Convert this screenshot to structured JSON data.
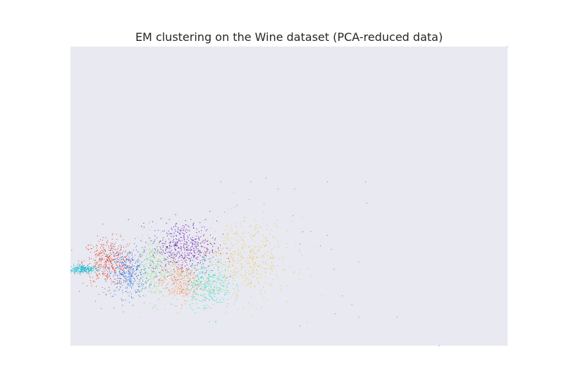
{
  "chart_data": {
    "type": "scatter",
    "title": "EM clustering on the Wine dataset (PCA-reduced data)",
    "xlabel": "",
    "ylabel": "",
    "xlim": [
      -6,
      26
    ],
    "ylim": [
      -4.2,
      12.6
    ],
    "axes_visible": false,
    "grid": false,
    "background": "#e8e9f1",
    "marker_size_px": 1,
    "clusters": [
      {
        "color": "#17becf",
        "center": [
          -5.1,
          0.1
        ],
        "spread": [
          0.55,
          0.12
        ],
        "count": 260
      },
      {
        "color": "#ec3b1c",
        "center": [
          -3.2,
          0.5
        ],
        "spread": [
          0.95,
          0.65
        ],
        "count": 420
      },
      {
        "color": "#2e6fe0",
        "center": [
          -1.8,
          -0.1
        ],
        "spread": [
          0.75,
          0.7
        ],
        "count": 420
      },
      {
        "color": "#8fe38a",
        "center": [
          0.1,
          0.2
        ],
        "spread": [
          0.75,
          0.95
        ],
        "count": 420
      },
      {
        "color": "#6a0dad",
        "center": [
          2.3,
          1.3
        ],
        "spread": [
          1.2,
          0.75
        ],
        "count": 520
      },
      {
        "color": "#ff8a3d",
        "center": [
          2.0,
          -0.6
        ],
        "spread": [
          0.75,
          0.6
        ],
        "count": 330
      },
      {
        "color": "#1fe0c4",
        "center": [
          4.1,
          -0.7
        ],
        "spread": [
          0.85,
          0.7
        ],
        "count": 360
      },
      {
        "color": "#f3c233",
        "center": [
          6.7,
          0.6
        ],
        "spread": [
          1.8,
          1.15
        ],
        "count": 520
      }
    ],
    "outliers": [
      {
        "x": 5.0,
        "y": 5.0,
        "color": "#1fa0e8"
      },
      {
        "x": 7.2,
        "y": 5.0,
        "color": "#1fa0e8"
      },
      {
        "x": 8.3,
        "y": 5.2,
        "color": "#1fa0e8"
      },
      {
        "x": 9.2,
        "y": 4.6,
        "color": "#1fa0e8"
      },
      {
        "x": 10.4,
        "y": 4.6,
        "color": "#1fa0e8"
      },
      {
        "x": 12.8,
        "y": 5.0,
        "color": "#1fa0e8"
      },
      {
        "x": 15.6,
        "y": 5.0,
        "color": "#1fa0e8"
      },
      {
        "x": 15.7,
        "y": 3.8,
        "color": "#1fa0e8"
      },
      {
        "x": 7.1,
        "y": 4.0,
        "color": "#1fa0e8"
      },
      {
        "x": 6.2,
        "y": 3.7,
        "color": "#1fa0e8"
      },
      {
        "x": 5.3,
        "y": 3.3,
        "color": "#1fa0e8"
      },
      {
        "x": 10.3,
        "y": 3.1,
        "color": "#1fa0e8"
      },
      {
        "x": 11.0,
        "y": 2.2,
        "color": "#1fa0e8"
      },
      {
        "x": 11.6,
        "y": 2.2,
        "color": "#1fa0e8"
      },
      {
        "x": 12.8,
        "y": 2.0,
        "color": "#1fa0e8"
      },
      {
        "x": 10.8,
        "y": 1.5,
        "color": "#1fa0e8"
      },
      {
        "x": 12.3,
        "y": 1.4,
        "color": "#1fa0e8"
      },
      {
        "x": 13.1,
        "y": 1.2,
        "color": "#1fa0e8"
      },
      {
        "x": 15.1,
        "y": 0.5,
        "color": "#1fa0e8"
      },
      {
        "x": 13.3,
        "y": 0.1,
        "color": "#1fa0e8"
      },
      {
        "x": 13.9,
        "y": -1.4,
        "color": "#1fa0e8"
      },
      {
        "x": 14.6,
        "y": -1.9,
        "color": "#1fa0e8"
      },
      {
        "x": 13.4,
        "y": -2.4,
        "color": "#1fa0e8"
      },
      {
        "x": 15.1,
        "y": -2.6,
        "color": "#1fa0e8"
      },
      {
        "x": 17.9,
        "y": -2.6,
        "color": "#1fa0e8"
      },
      {
        "x": 10.8,
        "y": -3.1,
        "color": "#1fa0e8"
      },
      {
        "x": 21.0,
        "y": -4.2,
        "color": "#1fa0e8"
      },
      {
        "x": 26.0,
        "y": 12.6,
        "color": "#1fa0e8"
      }
    ]
  }
}
